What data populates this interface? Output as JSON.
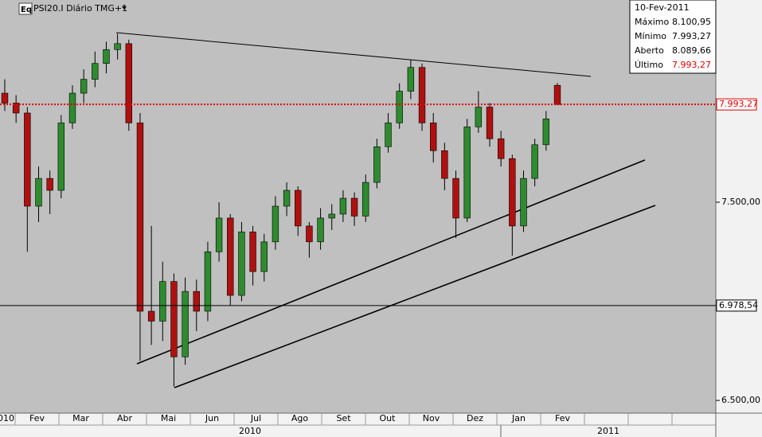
{
  "chart_data": {
    "type": "candlestick",
    "title": "PSI20.I Diário TMG+1",
    "icon": "Eq",
    "categories": [
      "010",
      "Fev",
      "Mar",
      "Abr",
      "Mai",
      "Jun",
      "Jul",
      "Ago",
      "Set",
      "Out",
      "Nov",
      "Dez",
      "Jan",
      "Fev"
    ],
    "years": [
      "2010",
      "2011"
    ],
    "open": [
      8050,
      8000,
      7950,
      7480,
      7620,
      7560,
      7900,
      8050,
      8120,
      8200,
      8270,
      8300,
      7900,
      6950,
      6900,
      7100,
      6720,
      7050,
      6950,
      7250,
      7420,
      7030,
      7350,
      7150,
      7300,
      7480,
      7560,
      7380,
      7300,
      7420,
      7440,
      7520,
      7430,
      7600,
      7780,
      7900,
      8060,
      8180,
      7900,
      7760,
      7620,
      7420,
      7880,
      7980,
      7820,
      7720,
      7380,
      7620,
      7790,
      8089.66
    ],
    "high": [
      8120,
      8040,
      7980,
      7680,
      7660,
      7940,
      8090,
      8170,
      8260,
      8310,
      8350,
      8320,
      7950,
      7380,
      7200,
      7140,
      7120,
      7110,
      7300,
      7500,
      7440,
      7400,
      7380,
      7340,
      7530,
      7600,
      7580,
      7400,
      7470,
      7490,
      7560,
      7550,
      7640,
      7820,
      7950,
      8100,
      8220,
      8200,
      7950,
      7800,
      7660,
      7920,
      8060,
      8000,
      7860,
      7740,
      7660,
      7820,
      7960,
      8100.95
    ],
    "low": [
      7960,
      7900,
      7250,
      7400,
      7440,
      7520,
      7870,
      8000,
      8080,
      8150,
      8220,
      7860,
      6700,
      6780,
      6800,
      6570,
      6680,
      6850,
      6900,
      7200,
      6980,
      7000,
      7080,
      7100,
      7260,
      7430,
      7330,
      7220,
      7260,
      7360,
      7400,
      7380,
      7400,
      7570,
      7750,
      7870,
      8020,
      7860,
      7700,
      7560,
      7320,
      7400,
      7850,
      7780,
      7680,
      7230,
      7350,
      7580,
      7760,
      7993.27
    ],
    "close": [
      8000,
      7950,
      7480,
      7620,
      7560,
      7900,
      8050,
      8120,
      8200,
      8270,
      8300,
      7900,
      6950,
      6900,
      7100,
      6720,
      7050,
      6950,
      7250,
      7420,
      7030,
      7350,
      7150,
      7300,
      7480,
      7560,
      7380,
      7300,
      7420,
      7440,
      7520,
      7430,
      7600,
      7780,
      7900,
      8060,
      8180,
      7900,
      7760,
      7620,
      7420,
      7880,
      7980,
      7820,
      7720,
      7380,
      7620,
      7790,
      7920,
      7993.27
    ],
    "up_color": "#2e8b2e",
    "down_color": "#b01010",
    "ylim": [
      6440,
      8512
    ],
    "yticks": [
      {
        "value": 6500,
        "label": "6.500,00"
      },
      {
        "value": 7500,
        "label": "7.500,00"
      }
    ],
    "reference_lines": [
      {
        "value": 7993.27,
        "label": "7.993,27",
        "color": "#e00000",
        "style": "dotted"
      },
      {
        "value": 6978.54,
        "label": "6.978,54",
        "color": "#000000",
        "style": "solid"
      }
    ],
    "info": {
      "date": "10-Fev-2011",
      "rows": [
        {
          "label": "Máximo",
          "value": "8.100,95"
        },
        {
          "label": "Mínimo",
          "value": "7.993,27"
        },
        {
          "label": "Aberto",
          "value": "8.089,66"
        },
        {
          "label": "Último",
          "value": "7.993,27",
          "highlight": "#e00000"
        }
      ]
    }
  }
}
